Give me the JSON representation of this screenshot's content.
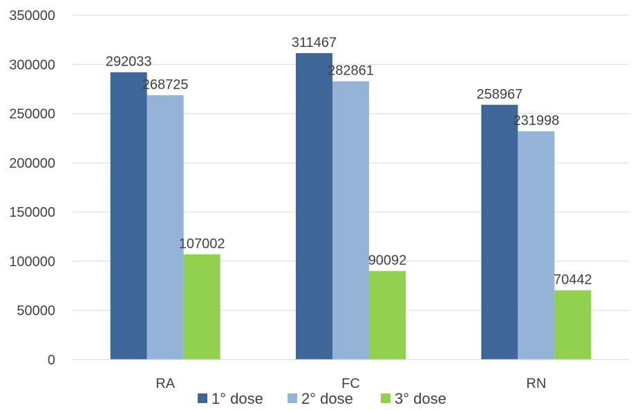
{
  "chart_data": {
    "type": "bar",
    "title": "",
    "xlabel": "",
    "ylabel": "",
    "categories": [
      "RA",
      "FC",
      "RN"
    ],
    "series": [
      {
        "name": "1° dose",
        "color": "#3e6699",
        "values": [
          292033,
          311467,
          258967
        ]
      },
      {
        "name": "2° dose",
        "color": "#95b3d7",
        "values": [
          268725,
          282861,
          231998
        ]
      },
      {
        "name": "3° dose",
        "color": "#92d050",
        "values": [
          107002,
          90092,
          70442
        ]
      }
    ],
    "ylim": [
      0,
      350000
    ],
    "yticks": [
      0,
      50000,
      100000,
      150000,
      200000,
      250000,
      300000,
      350000
    ],
    "grid": true,
    "legend_position": "bottom",
    "data_labels": true
  }
}
